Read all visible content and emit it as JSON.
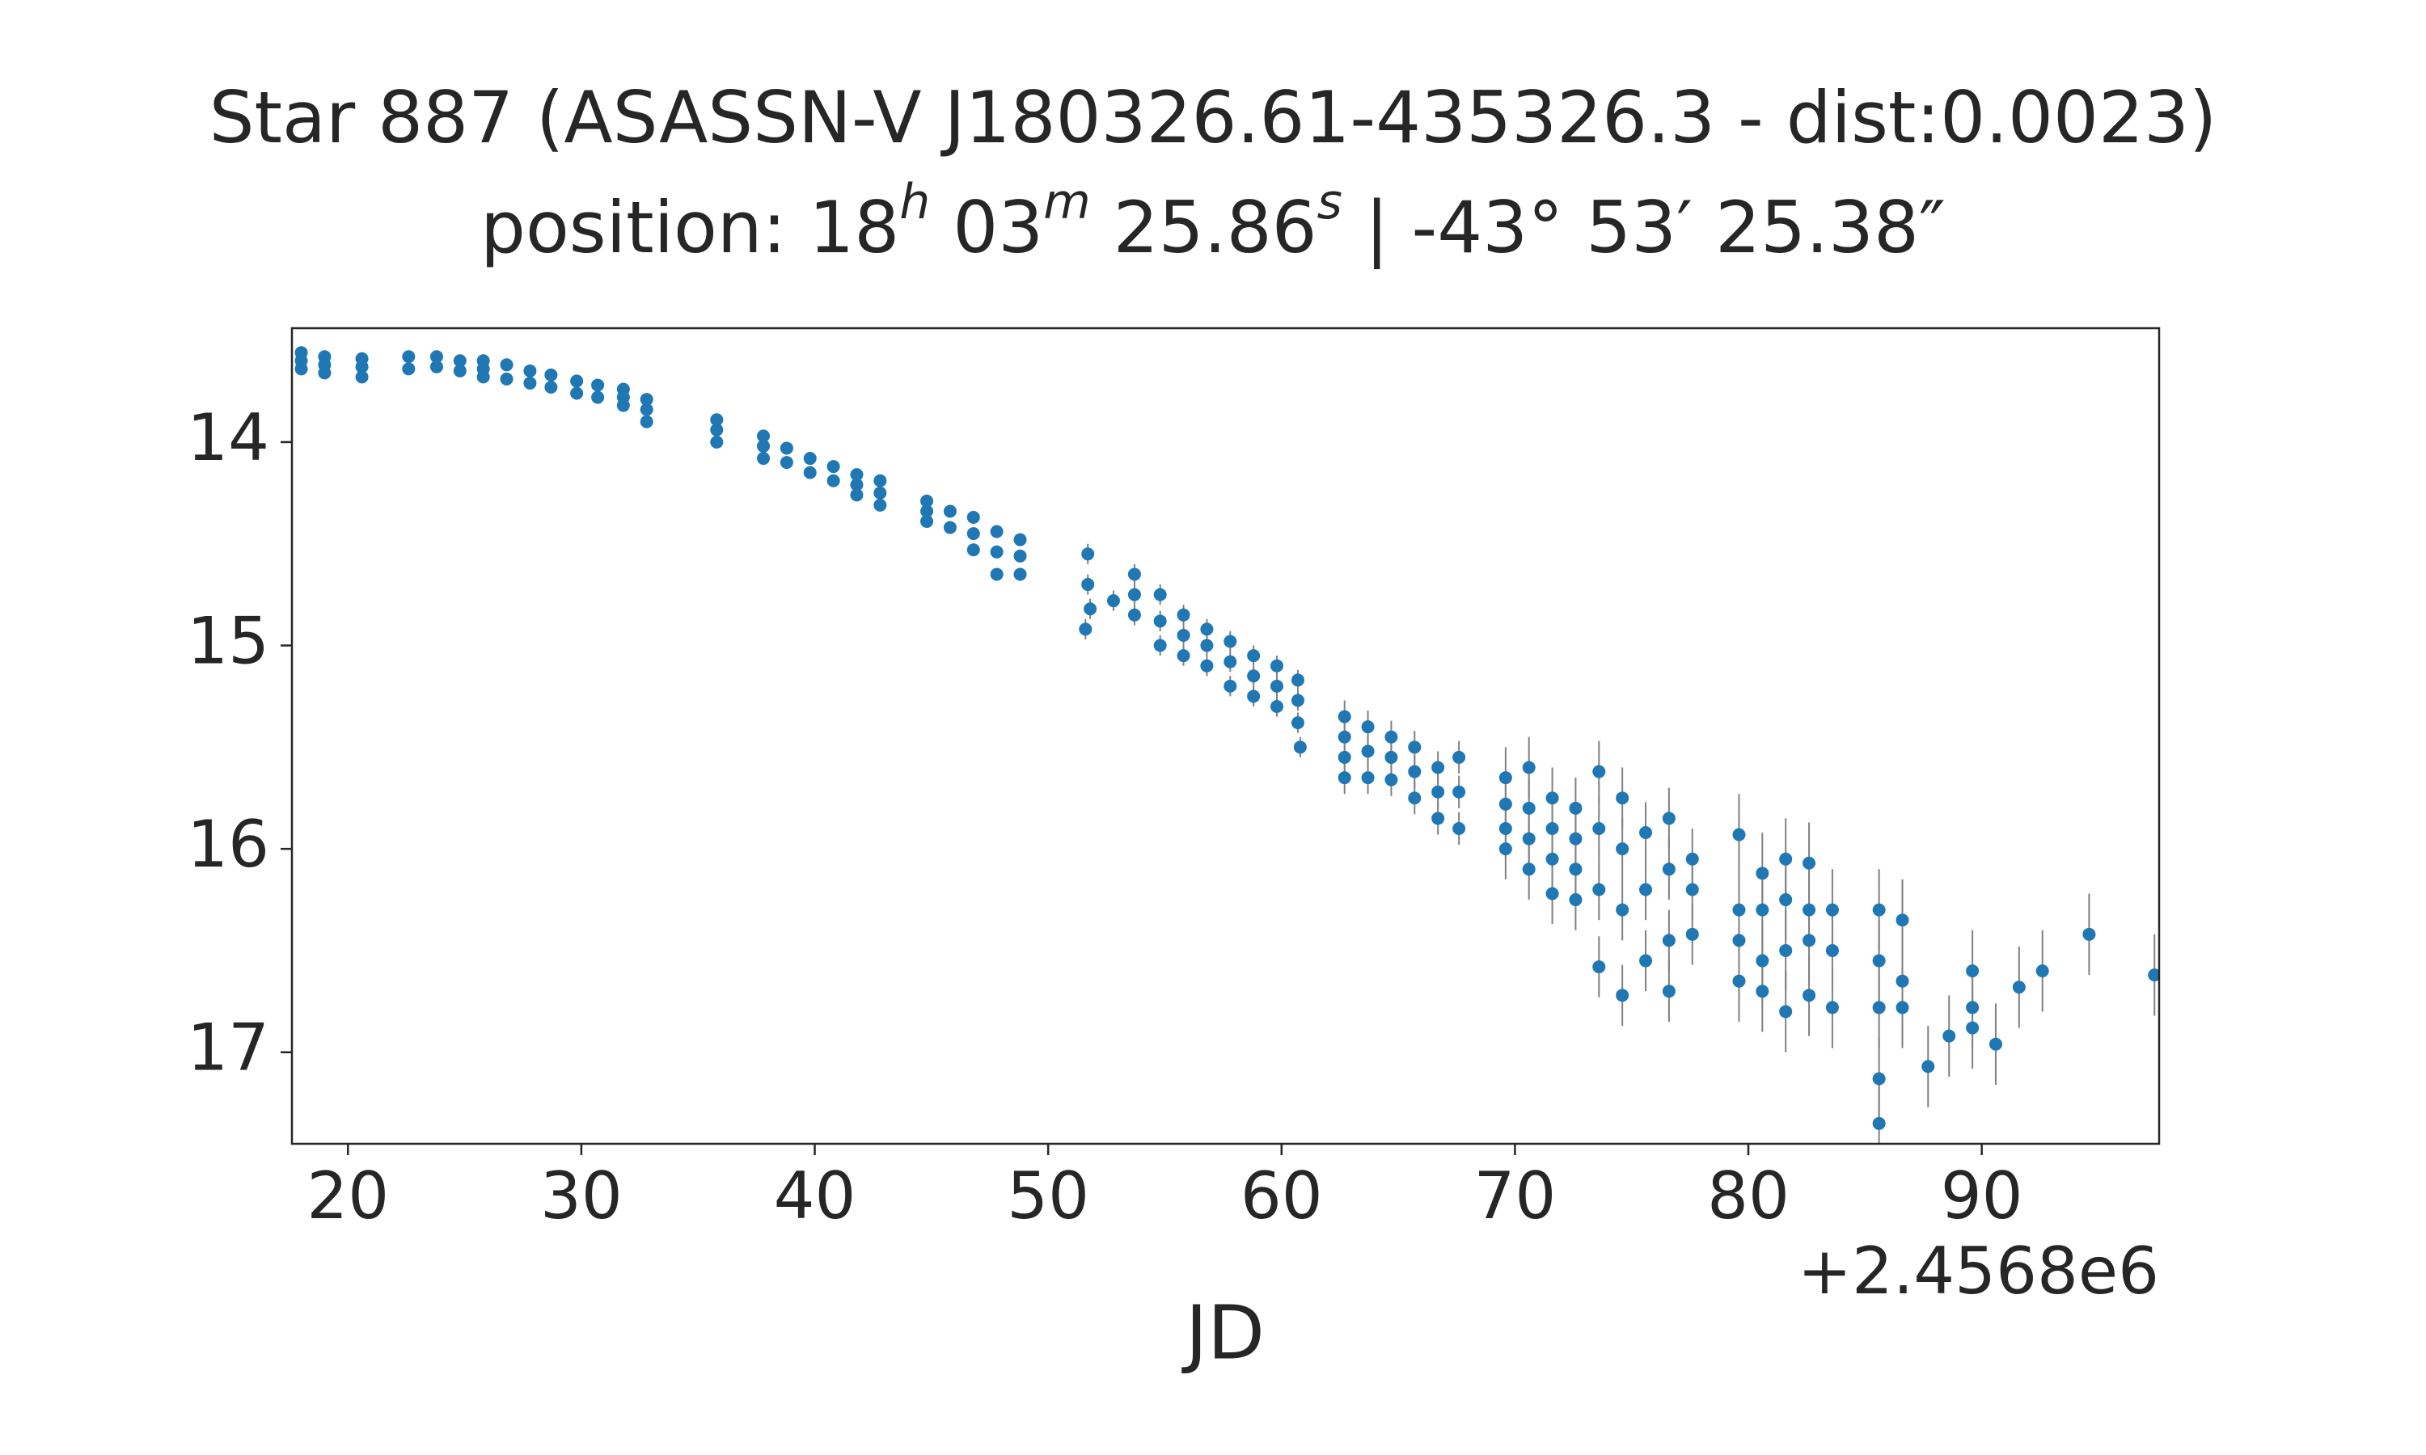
{
  "chart_data": {
    "type": "scatter",
    "title": "Star 887 (ASASSN-V J180326.61-435326.3 - dist:0.0023)",
    "subtitle_parts": [
      "position: 18",
      "h",
      " 03",
      "m",
      " 25.86",
      "s",
      " | -43° 53′ 25.38″"
    ],
    "xlabel": "JD",
    "x_offset_label": "+2.4568e6",
    "xlim": [
      17.6,
      97.6
    ],
    "ylim": [
      17.45,
      13.44
    ],
    "xticks": [
      20,
      30,
      40,
      50,
      60,
      70,
      80,
      90
    ],
    "yticks": [
      14,
      15,
      16,
      17
    ],
    "error_color": "#808080",
    "series": [
      {
        "color": "#1f77b4",
        "x": [
          18.0,
          18.0,
          18.0,
          19.0,
          19.0,
          19.0,
          20.6,
          20.6,
          20.6,
          22.6,
          22.6,
          23.8,
          23.8,
          24.8,
          24.8,
          25.8,
          25.8,
          25.8,
          26.8,
          26.8,
          27.8,
          27.8,
          28.7,
          28.7,
          29.8,
          29.8,
          30.7,
          30.7,
          31.8,
          31.8,
          31.8,
          32.8,
          32.8,
          32.8,
          35.8,
          35.8,
          35.8,
          37.8,
          37.8,
          37.8,
          38.8,
          38.8,
          39.8,
          39.8,
          40.8,
          40.8,
          41.8,
          41.8,
          41.8,
          42.8,
          42.8,
          42.8,
          44.8,
          44.8,
          44.8,
          45.8,
          45.8,
          46.8,
          46.8,
          46.8,
          47.8,
          47.8,
          47.8,
          48.8,
          48.8,
          48.8,
          51.6,
          51.7,
          51.7,
          51.8,
          52.8,
          53.7,
          53.7,
          53.7,
          54.8,
          54.8,
          54.8,
          55.8,
          55.8,
          55.8,
          56.8,
          56.8,
          56.8,
          57.8,
          57.8,
          57.8,
          58.8,
          58.8,
          58.8,
          59.8,
          59.8,
          59.8,
          60.7,
          60.7,
          60.7,
          60.8,
          62.7,
          62.7,
          62.7,
          62.7,
          63.7,
          63.7,
          63.7,
          64.7,
          64.7,
          64.7,
          65.7,
          65.7,
          65.7,
          66.7,
          66.7,
          66.7,
          67.6,
          67.6,
          67.6,
          69.6,
          69.6,
          69.6,
          69.6,
          70.6,
          70.6,
          70.6,
          70.6,
          71.6,
          71.6,
          71.6,
          71.6,
          72.6,
          72.6,
          72.6,
          72.6,
          73.6,
          73.6,
          73.6,
          73.6,
          74.6,
          74.6,
          74.6,
          74.6,
          75.6,
          75.6,
          75.6,
          76.6,
          76.6,
          76.6,
          76.6,
          77.6,
          77.6,
          77.6,
          79.6,
          79.6,
          79.6,
          79.6,
          80.6,
          80.6,
          80.6,
          80.6,
          81.6,
          81.6,
          81.6,
          81.6,
          82.6,
          82.6,
          82.6,
          82.6,
          83.6,
          83.6,
          83.6,
          85.6,
          85.6,
          85.6,
          85.6,
          85.6,
          86.6,
          86.6,
          86.6,
          87.7,
          88.6,
          89.6,
          89.6,
          89.6,
          90.6,
          91.6,
          92.6,
          94.6,
          97.4
        ],
        "values": [
          13.56,
          13.6,
          13.64,
          13.58,
          13.62,
          13.66,
          13.59,
          13.63,
          13.68,
          13.58,
          13.64,
          13.58,
          13.63,
          13.6,
          13.65,
          13.6,
          13.64,
          13.68,
          13.62,
          13.69,
          13.65,
          13.71,
          13.67,
          13.73,
          13.7,
          13.76,
          13.72,
          13.78,
          13.74,
          13.78,
          13.82,
          13.79,
          13.84,
          13.9,
          13.89,
          13.94,
          14.0,
          13.97,
          14.02,
          14.08,
          14.03,
          14.1,
          14.08,
          14.15,
          14.12,
          14.19,
          14.16,
          14.21,
          14.26,
          14.19,
          14.25,
          14.31,
          14.29,
          14.34,
          14.39,
          14.34,
          14.42,
          14.37,
          14.45,
          14.53,
          14.44,
          14.54,
          14.65,
          14.48,
          14.56,
          14.65,
          14.92,
          14.55,
          14.7,
          14.82,
          14.78,
          14.65,
          14.75,
          14.85,
          14.75,
          14.88,
          15.0,
          14.85,
          14.95,
          15.05,
          14.92,
          15.0,
          15.1,
          14.98,
          15.08,
          15.2,
          15.05,
          15.15,
          15.25,
          15.1,
          15.2,
          15.3,
          15.17,
          15.27,
          15.38,
          15.5,
          15.35,
          15.45,
          15.55,
          15.65,
          15.4,
          15.52,
          15.65,
          15.45,
          15.55,
          15.66,
          15.5,
          15.62,
          15.75,
          15.6,
          15.72,
          15.85,
          15.55,
          15.72,
          15.9,
          15.65,
          15.78,
          15.9,
          16.0,
          15.6,
          15.8,
          15.95,
          16.1,
          15.75,
          15.9,
          16.05,
          16.22,
          15.8,
          15.95,
          16.1,
          16.25,
          15.62,
          15.9,
          16.2,
          16.58,
          15.75,
          16.0,
          16.3,
          16.72,
          15.92,
          16.2,
          16.55,
          15.85,
          16.1,
          16.45,
          16.7,
          16.05,
          16.2,
          16.42,
          15.93,
          16.3,
          16.45,
          16.65,
          16.12,
          16.3,
          16.55,
          16.7,
          16.05,
          16.25,
          16.5,
          16.8,
          16.07,
          16.3,
          16.45,
          16.72,
          16.3,
          16.5,
          16.78,
          16.3,
          16.55,
          16.78,
          17.13,
          17.35,
          16.35,
          16.65,
          16.78,
          17.07,
          16.92,
          16.6,
          16.78,
          16.88,
          16.96,
          16.68,
          16.6,
          16.42,
          16.62
        ],
        "errors": [
          0.03,
          0.03,
          0.03,
          0.03,
          0.03,
          0.03,
          0.03,
          0.03,
          0.03,
          0.03,
          0.03,
          0.03,
          0.03,
          0.03,
          0.03,
          0.03,
          0.03,
          0.03,
          0.03,
          0.03,
          0.03,
          0.03,
          0.03,
          0.03,
          0.03,
          0.03,
          0.03,
          0.03,
          0.03,
          0.03,
          0.03,
          0.03,
          0.03,
          0.03,
          0.03,
          0.03,
          0.03,
          0.03,
          0.03,
          0.03,
          0.03,
          0.03,
          0.03,
          0.03,
          0.03,
          0.03,
          0.03,
          0.03,
          0.03,
          0.03,
          0.03,
          0.03,
          0.03,
          0.03,
          0.03,
          0.03,
          0.03,
          0.03,
          0.03,
          0.03,
          0.03,
          0.03,
          0.03,
          0.03,
          0.03,
          0.03,
          0.05,
          0.05,
          0.05,
          0.05,
          0.05,
          0.05,
          0.05,
          0.05,
          0.05,
          0.05,
          0.05,
          0.05,
          0.05,
          0.05,
          0.05,
          0.05,
          0.05,
          0.05,
          0.05,
          0.05,
          0.05,
          0.05,
          0.05,
          0.05,
          0.05,
          0.05,
          0.05,
          0.05,
          0.05,
          0.05,
          0.08,
          0.08,
          0.08,
          0.08,
          0.08,
          0.08,
          0.08,
          0.08,
          0.08,
          0.08,
          0.08,
          0.08,
          0.08,
          0.08,
          0.08,
          0.08,
          0.08,
          0.08,
          0.08,
          0.15,
          0.15,
          0.15,
          0.15,
          0.15,
          0.15,
          0.15,
          0.15,
          0.15,
          0.15,
          0.15,
          0.15,
          0.15,
          0.15,
          0.15,
          0.15,
          0.15,
          0.15,
          0.15,
          0.15,
          0.15,
          0.15,
          0.15,
          0.15,
          0.15,
          0.15,
          0.15,
          0.15,
          0.15,
          0.15,
          0.15,
          0.15,
          0.15,
          0.15,
          0.2,
          0.2,
          0.2,
          0.2,
          0.2,
          0.2,
          0.2,
          0.2,
          0.2,
          0.2,
          0.2,
          0.2,
          0.2,
          0.2,
          0.2,
          0.2,
          0.2,
          0.2,
          0.2,
          0.2,
          0.2,
          0.2,
          0.2,
          0.2,
          0.2,
          0.2,
          0.2,
          0.2,
          0.2,
          0.2,
          0.2,
          0.2,
          0.2,
          0.2,
          0.2,
          0.2,
          0.2
        ]
      }
    ]
  }
}
